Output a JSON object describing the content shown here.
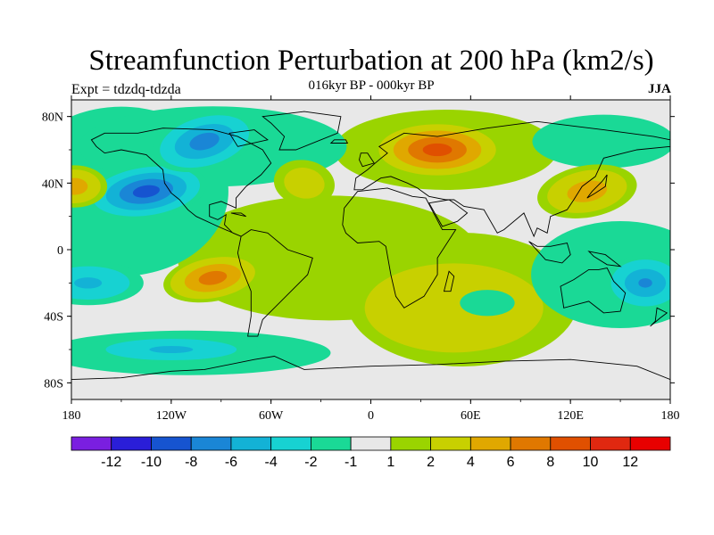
{
  "chart_data": {
    "type": "heatmap",
    "title": "Streamfunction Perturbation at 200 hPa (km2/s)",
    "subtitle": "016kyr BP - 000kyr BP",
    "left_label": "Expt = tdzdq-tdzda",
    "right_label": "JJA",
    "xlabel": "",
    "ylabel": "",
    "xlim": [
      -180,
      180
    ],
    "ylim": [
      -90,
      90
    ],
    "x_ticks": [
      {
        "value": -180,
        "label": "180"
      },
      {
        "value": -120,
        "label": "120W"
      },
      {
        "value": -60,
        "label": "60W"
      },
      {
        "value": 0,
        "label": "0"
      },
      {
        "value": 60,
        "label": "60E"
      },
      {
        "value": 120,
        "label": "120E"
      },
      {
        "value": 180,
        "label": "180"
      }
    ],
    "y_ticks": [
      {
        "value": 80,
        "label": "80N"
      },
      {
        "value": 40,
        "label": "40N"
      },
      {
        "value": 0,
        "label": "0"
      },
      {
        "value": -40,
        "label": "40S"
      },
      {
        "value": -80,
        "label": "80S"
      }
    ],
    "colorbar": {
      "labels": [
        "-12",
        "-10",
        "-8",
        "-6",
        "-4",
        "-2",
        "-1",
        "1",
        "2",
        "4",
        "6",
        "8",
        "10",
        "12"
      ],
      "colors": [
        "#7a1fe0",
        "#2a1ed8",
        "#1654d0",
        "#1a86d6",
        "#13b2d6",
        "#17d2d2",
        "#1ad996",
        "#e8e8e8",
        "#9ad400",
        "#c8d000",
        "#e0a800",
        "#e07800",
        "#e05000",
        "#e02810",
        "#e80000"
      ],
      "bounds": [
        -12,
        -10,
        -8,
        -6,
        -4,
        -2,
        -1,
        1,
        2,
        4,
        6,
        8,
        10,
        12
      ]
    },
    "features": [
      {
        "name": "east-asia-anomaly",
        "lon": 130,
        "lat": 35,
        "value": 5
      },
      {
        "name": "europe-positive-center",
        "lon": 40,
        "lat": 60,
        "value": 9
      },
      {
        "name": "north-pacific-negative",
        "lon": -135,
        "lat": 35,
        "value": -9
      },
      {
        "name": "north-america-negative",
        "lon": -100,
        "lat": 65,
        "value": -7
      },
      {
        "name": "south-pacific-positive",
        "lon": -95,
        "lat": -17,
        "value": 7
      },
      {
        "name": "south-pacific-negative",
        "lon": -170,
        "lat": -20,
        "value": -4
      },
      {
        "name": "dateline-positive",
        "lon": -178,
        "lat": 38,
        "value": 5
      },
      {
        "name": "indian-ocean-negative",
        "lon": 70,
        "lat": -32,
        "value": -1
      },
      {
        "name": "australia-negative",
        "lon": 165,
        "lat": -20,
        "value": -6
      },
      {
        "name": "southern-ocean-negative",
        "lon": -120,
        "lat": -60,
        "value": -4
      },
      {
        "name": "atlantic-positive",
        "lon": -40,
        "lat": 40,
        "value": 3
      }
    ]
  }
}
